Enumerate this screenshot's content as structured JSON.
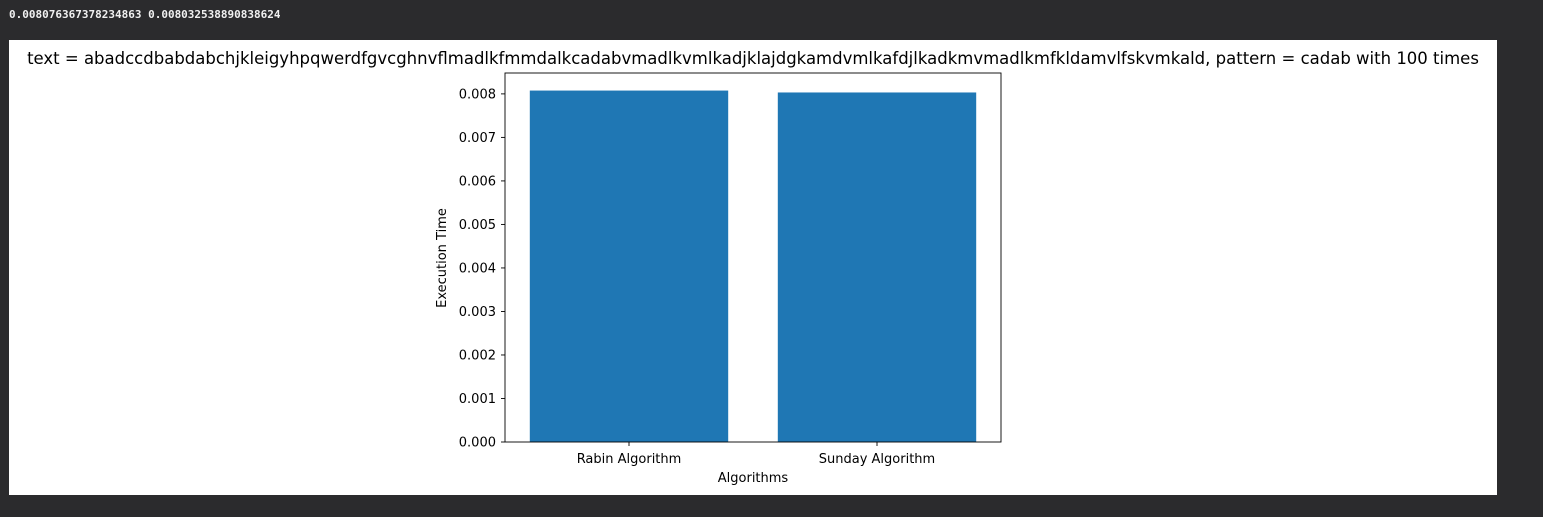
{
  "output": {
    "stdout_line": "0.008076367378234863 0.008032538890838624"
  },
  "chart_data": {
    "type": "bar",
    "title": "text = abadccdbabdabchjkleigyhpqwerdfgvcghnvflmadlkfmmdalkcadabvmadlkvmlkadjklajdgkamdvmlkafdjlkadkmvmadlkmfkldamvlfskvmkald, pattern = cadab  with 100 times",
    "xlabel": "Algorithms",
    "ylabel": "Execution Time",
    "categories": [
      "Rabin Algorithm",
      "Sunday Algorithm"
    ],
    "values": [
      0.008076367378234863,
      0.008032538890838624
    ],
    "ylim": [
      0,
      0.00848
    ],
    "yticks": [
      "0.000",
      "0.001",
      "0.002",
      "0.003",
      "0.004",
      "0.005",
      "0.006",
      "0.007",
      "0.008"
    ],
    "ytick_values": [
      0,
      0.001,
      0.002,
      0.003,
      0.004,
      0.005,
      0.006,
      0.007,
      0.008
    ],
    "bar_color": "#1f77b4",
    "grid": false,
    "legend": "none"
  }
}
